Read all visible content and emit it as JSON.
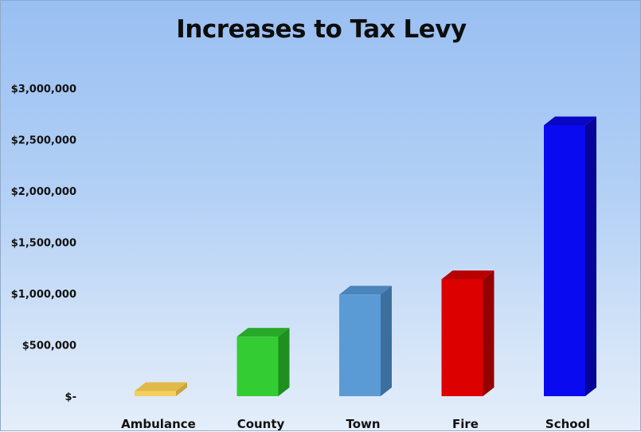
{
  "chart_data": {
    "type": "bar",
    "title": "Increases to Tax Levy",
    "xlabel": "",
    "ylabel": "",
    "categories": [
      "Ambulance",
      "County",
      "Town",
      "Fire",
      "School"
    ],
    "values": [
      50000,
      580000,
      990000,
      1140000,
      2640000
    ],
    "ylim": [
      0,
      3000000
    ],
    "yticks": [
      0,
      500000,
      1000000,
      1500000,
      2000000,
      2500000,
      3000000
    ],
    "ytick_labels": [
      "$-",
      "$500,000",
      "$1,000,000",
      "$1,500,000",
      "$2,000,000",
      "$2,500,000",
      "$3,000,000"
    ],
    "grid": false,
    "legend": "none",
    "style": "3d-column",
    "colors": [
      "#f5cf5e",
      "#33cc33",
      "#5b9bd5",
      "#dd0000",
      "#0a0af0"
    ],
    "side_colors": [
      "#c9a43a",
      "#1f8f1f",
      "#3d6f9e",
      "#950000",
      "#05059a"
    ],
    "top_colors": [
      "#e0b94a",
      "#28a828",
      "#4a85bb",
      "#b80000",
      "#0707c4"
    ]
  }
}
